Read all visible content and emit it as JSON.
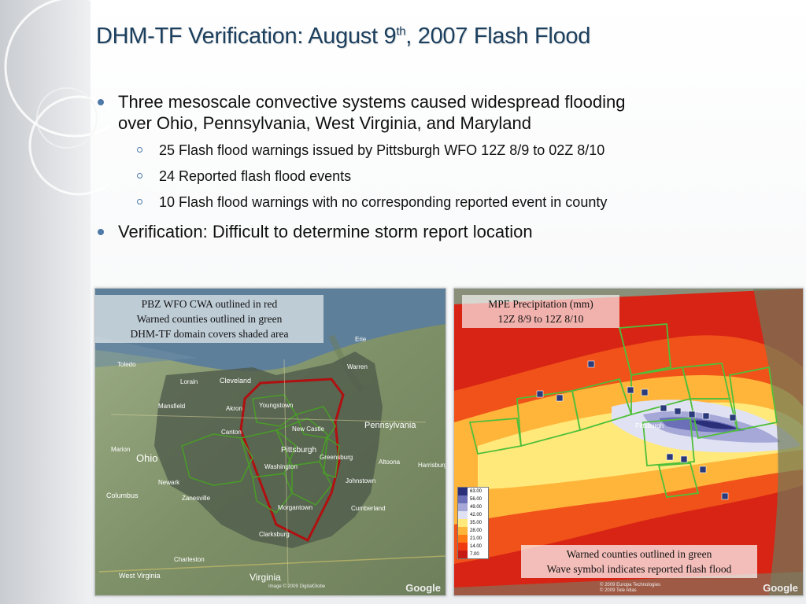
{
  "title": {
    "main": "DHM-TF Verification:  August 9",
    "sup": "th",
    "rest": ", 2007 Flash Flood"
  },
  "bullets": [
    {
      "text": "Three mesoscale convective systems caused widespread flooding"
    },
    {
      "text": "over Ohio, Pennsylvania, West Virginia, and Maryland"
    }
  ],
  "subbullets": [
    "25 Flash flood warnings issued by Pittsburgh WFO 12Z 8/9 to 02Z 8/10",
    "24 Reported flash flood events",
    "10 Flash flood warnings with no corresponding reported event in county"
  ],
  "bullet2": "Verification:  Difficult to determine storm report location",
  "left_map": {
    "caption": [
      "PBZ WFO CWA outlined in red",
      "Warned counties outlined in green",
      "DHM-TF domain covers shaded area"
    ],
    "places": [
      "Toledo",
      "Cleveland",
      "Lorain",
      "Akron",
      "Youngstown",
      "Canton",
      "Ohio",
      "Newark",
      "Columbus",
      "Pittsburgh",
      "New Castle",
      "Pennsylvania",
      "Altoona",
      "Harrisburg",
      "Morgantown",
      "Clarksburg",
      "Virginia",
      "West Virginia",
      "Washington",
      "Greensburg",
      "Erie",
      "Warren",
      "Mansfield",
      "Johnstown",
      "Cumberland",
      "Charleston",
      "Marion",
      "Zanesville"
    ],
    "colors": {
      "cwa": "#b01010",
      "warned": "#4a9a2a",
      "shade": "#4e5a4a"
    }
  },
  "right_map": {
    "caption": [
      "MPE Precipitation (mm)",
      "12Z 8/9 to 12Z 8/10"
    ],
    "caption2": [
      "Warned counties outlined in green",
      "Wave symbol indicates reported flash flood"
    ],
    "legend": [
      "63.00",
      "56.00",
      "49.00",
      "42.00",
      "35.00",
      "28.00",
      "21.00",
      "14.00",
      "7.00"
    ],
    "legend_colors": [
      "#2b2f7a",
      "#6b6fb8",
      "#a6a8d8",
      "#e0e2f3",
      "#ffe97a",
      "#ffb43a",
      "#ff7a12",
      "#f03b12",
      "#c81a14"
    ],
    "city": "Pittsburgh",
    "credits": [
      "© 2009 Europa Technologies",
      "© 2009 Tele Atlas"
    ],
    "google": "Google"
  },
  "left_credit": "Image © 2009 DigitalGlobe",
  "google": "Google"
}
